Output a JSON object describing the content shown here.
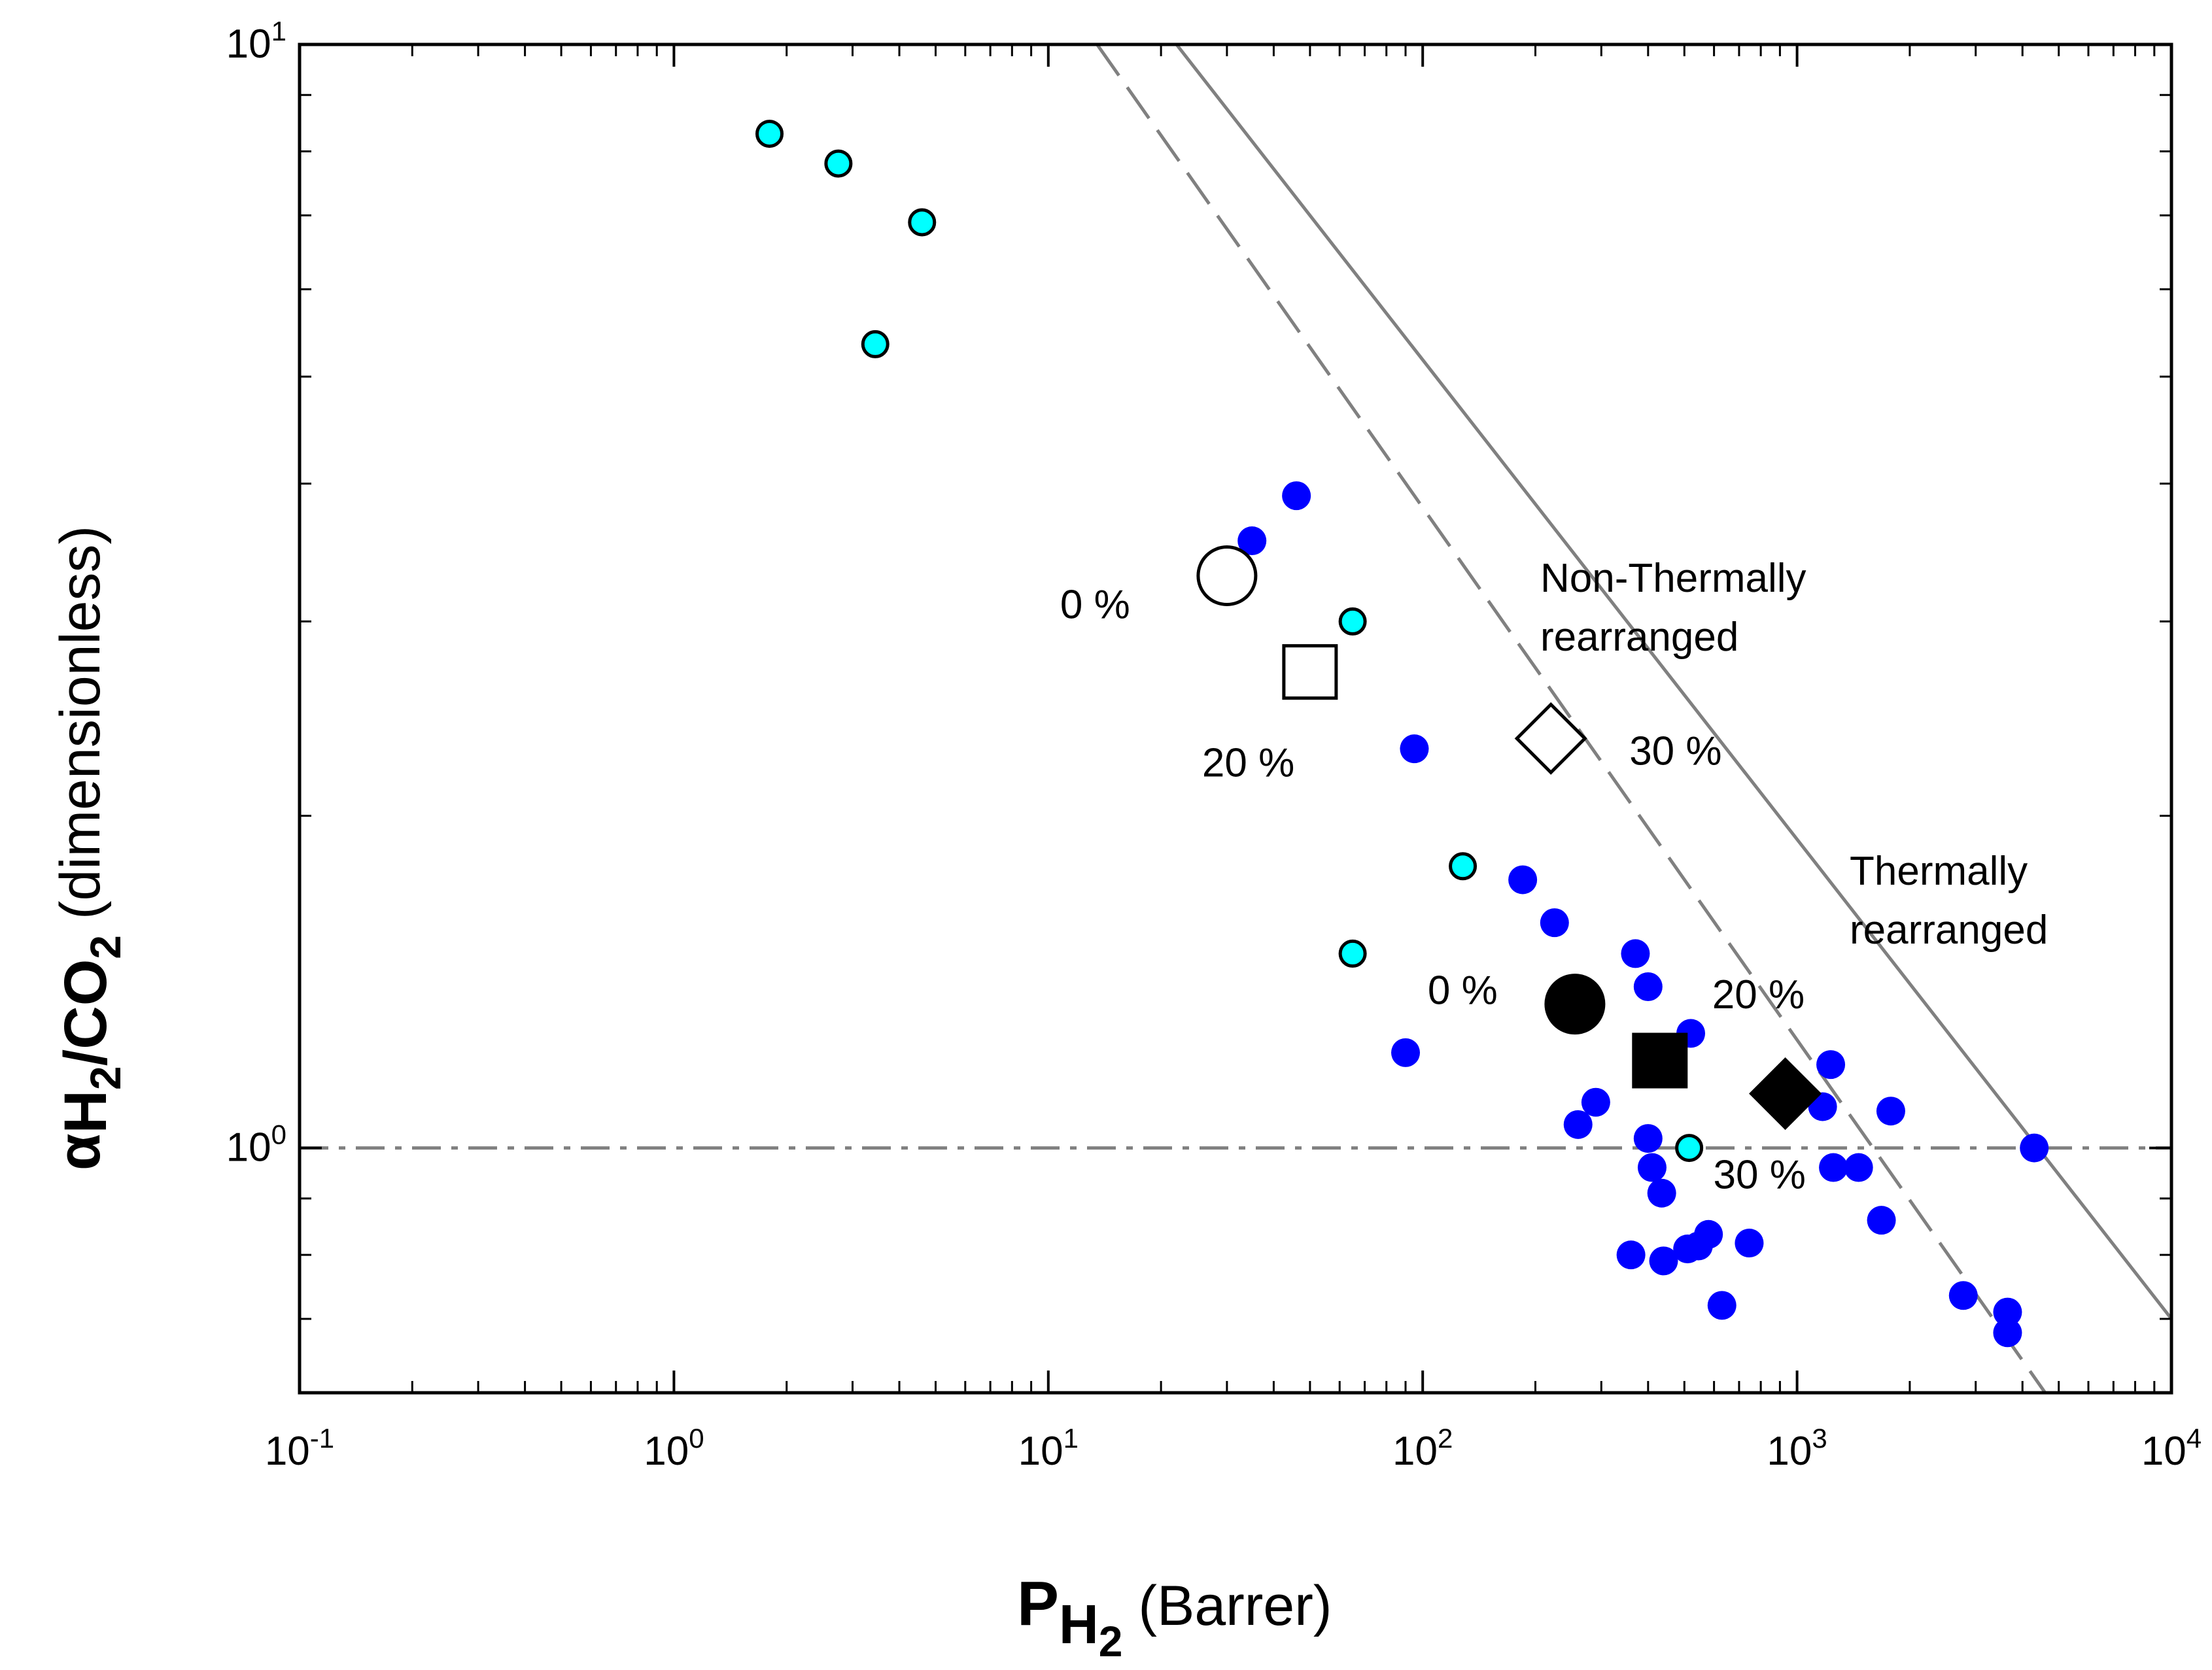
{
  "chart_data": {
    "type": "scatter",
    "xscale": "log",
    "yscale": "log",
    "xlim": [
      0.1,
      10000
    ],
    "ylim": [
      0.6,
      10
    ],
    "xlabel": {
      "main": "P",
      "sub": "H",
      "subsub": "2",
      "unit": " (Barrer)"
    },
    "ylabel": {
      "alpha": "α",
      "sub1": "H",
      "sub1n": "2",
      "slash": "/CO",
      "sub2n": "2",
      "unit": " (dimensionless)"
    },
    "x_ticks": [
      {
        "value": 0.1,
        "base": "10",
        "exp": "-1"
      },
      {
        "value": 1,
        "base": "10",
        "exp": "0"
      },
      {
        "value": 10,
        "base": "10",
        "exp": "1"
      },
      {
        "value": 100,
        "base": "10",
        "exp": "2"
      },
      {
        "value": 1000,
        "base": "10",
        "exp": "3"
      },
      {
        "value": 10000,
        "base": "10",
        "exp": "4"
      }
    ],
    "y_ticks": [
      {
        "value": 1,
        "base": "10",
        "exp": "0"
      },
      {
        "value": 10,
        "base": "10",
        "exp": "1"
      }
    ],
    "reference_lines": [
      {
        "name": "upper-bound-2008",
        "style": "solid",
        "color": "#808080",
        "points": [
          [
            22,
            10
          ],
          [
            10000,
            0.7
          ]
        ]
      },
      {
        "name": "upper-bound-1991",
        "style": "dashed",
        "color": "#808080",
        "points": [
          [
            13.5,
            10
          ],
          [
            4600,
            0.6
          ]
        ]
      },
      {
        "name": "unity-selectivity",
        "style": "dashdot",
        "color": "#808080",
        "points": [
          [
            0.1,
            1.0
          ],
          [
            10000,
            1.0
          ]
        ]
      }
    ],
    "series": [
      {
        "name": "literature-cyan",
        "marker": "circle-outlined",
        "color": "#00ffff",
        "points": [
          [
            1.8,
            8.3
          ],
          [
            2.75,
            7.8
          ],
          [
            4.6,
            6.9
          ],
          [
            3.45,
            5.35
          ],
          [
            65,
            3.0
          ],
          [
            128,
            1.8
          ],
          [
            65,
            1.5
          ],
          [
            515,
            1.0
          ]
        ]
      },
      {
        "name": "literature-blue",
        "marker": "circle",
        "color": "#0000ff",
        "points": [
          [
            46,
            3.9
          ],
          [
            35,
            3.55
          ],
          [
            95,
            2.3
          ],
          [
            185,
            1.75
          ],
          [
            225,
            1.6
          ],
          [
            370,
            1.5
          ],
          [
            400,
            1.4
          ],
          [
            520,
            1.27
          ],
          [
            90,
            1.22
          ],
          [
            1230,
            1.19
          ],
          [
            1170,
            1.09
          ],
          [
            290,
            1.1
          ],
          [
            260,
            1.05
          ],
          [
            1780,
            1.08
          ],
          [
            4300,
            1.0
          ],
          [
            400,
            1.02
          ],
          [
            410,
            0.96
          ],
          [
            1250,
            0.96
          ],
          [
            1460,
            0.96
          ],
          [
            435,
            0.91
          ],
          [
            1680,
            0.86
          ],
          [
            580,
            0.835
          ],
          [
            545,
            0.815
          ],
          [
            745,
            0.82
          ],
          [
            510,
            0.81
          ],
          [
            360,
            0.8
          ],
          [
            440,
            0.79
          ],
          [
            2780,
            0.735
          ],
          [
            3650,
            0.71
          ],
          [
            3650,
            0.68
          ],
          [
            630,
            0.72
          ]
        ]
      },
      {
        "name": "this-work-non-TR",
        "color": "#ffffff",
        "stroke": "#000000",
        "points": [
          {
            "x": 30,
            "y": 3.3,
            "marker": "circle",
            "label": "0 %"
          },
          {
            "x": 50,
            "y": 2.7,
            "marker": "square",
            "label": "20 %"
          },
          {
            "x": 220,
            "y": 2.35,
            "marker": "diamond",
            "label": "30 %"
          }
        ]
      },
      {
        "name": "this-work-TR",
        "color": "#000000",
        "points": [
          {
            "x": 255,
            "y": 1.35,
            "marker": "circle",
            "label": "0 %"
          },
          {
            "x": 430,
            "y": 1.2,
            "marker": "square",
            "label": "20 %"
          },
          {
            "x": 930,
            "y": 1.12,
            "marker": "diamond",
            "label": "30 %"
          }
        ]
      }
    ],
    "annotations": [
      {
        "id": "nontr-title",
        "line1": "Non-Thermally",
        "line2": "rearranged"
      },
      {
        "id": "tr-title",
        "line1": "Thermally",
        "line2": "rearranged"
      }
    ]
  }
}
